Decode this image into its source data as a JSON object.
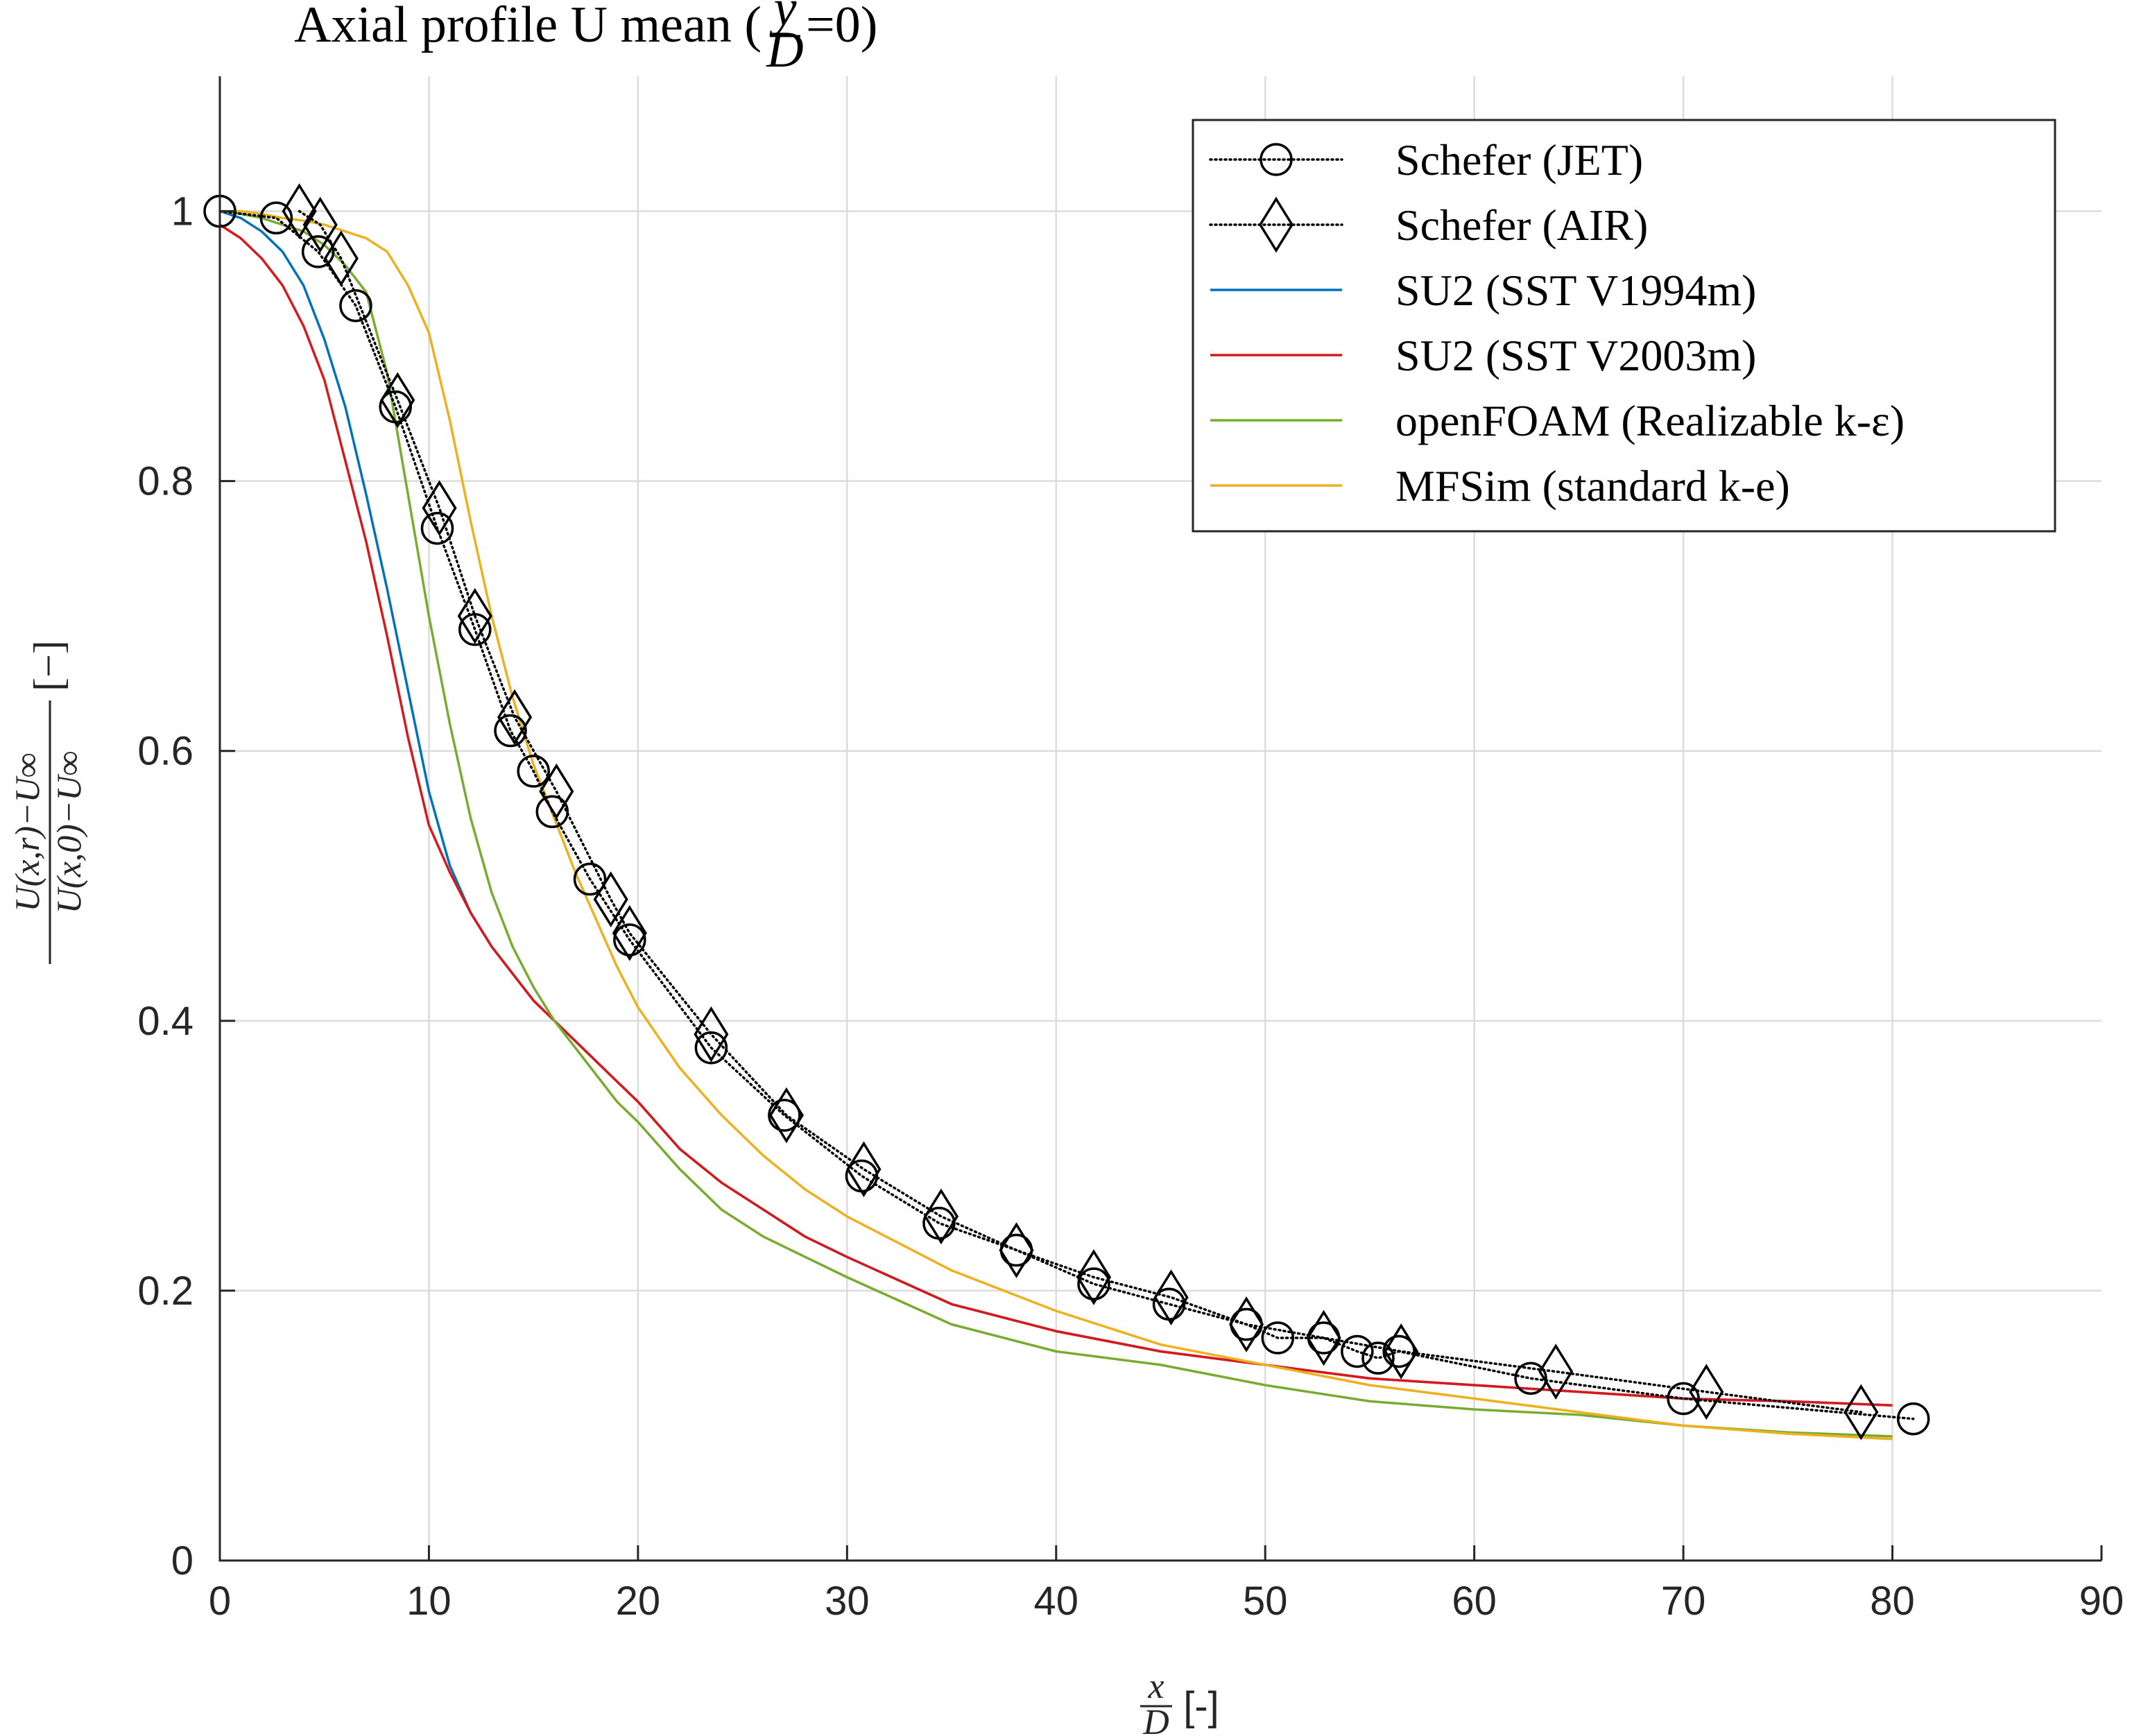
{
  "chart_data": {
    "type": "line",
    "title": "Axial profile U mean (y/D=0)",
    "title_parts": {
      "prefix": "Axial profile U mean (",
      "frac_num": "y",
      "frac_den": "D",
      "suffix": "=0)"
    },
    "xlabel": "x/D [-]",
    "xlabel_parts": {
      "frac_num": "x",
      "frac_den": "D",
      "unit": "[-]"
    },
    "ylabel": "(U(x,r)−U∞)/(U(x,0)−U∞) [−]",
    "ylabel_parts": {
      "num": "U(x,r)−U∞",
      "den": "U(x,0)−U∞",
      "unit": "[−]"
    },
    "xlim": [
      0,
      90
    ],
    "ylim": [
      0,
      1.1
    ],
    "xticks": [
      0,
      10,
      20,
      30,
      40,
      50,
      60,
      70,
      80,
      90
    ],
    "yticks": [
      0,
      0.2,
      0.4,
      0.6,
      0.8,
      1
    ],
    "xtick_labels": [
      "0",
      "10",
      "20",
      "30",
      "40",
      "50",
      "60",
      "70",
      "80",
      "90"
    ],
    "ytick_labels": [
      "0",
      "0.2",
      "0.4",
      "0.6",
      "0.8",
      "1"
    ],
    "grid": true,
    "legend_position": "top-right",
    "series": [
      {
        "name": "Schefer (JET)",
        "color": "#000000",
        "line": "dotted",
        "marker": "circle",
        "x": [
          0,
          2.7,
          4.7,
          6.5,
          8.4,
          10.4,
          12.2,
          13.9,
          15.0,
          15.9,
          17.7,
          19.6,
          23.5,
          27.0,
          30.7,
          34.4,
          38.1,
          41.8,
          45.4,
          49.1,
          50.6,
          52.8,
          54.4,
          55.4,
          56.4,
          62.7,
          70.0,
          81.0
        ],
        "y": [
          1.0,
          0.995,
          0.97,
          0.93,
          0.855,
          0.765,
          0.69,
          0.615,
          0.585,
          0.555,
          0.505,
          0.46,
          0.38,
          0.33,
          0.285,
          0.25,
          0.23,
          0.205,
          0.19,
          0.175,
          0.165,
          0.165,
          0.155,
          0.15,
          0.155,
          0.135,
          0.12,
          0.105
        ]
      },
      {
        "name": "Schefer (AIR)",
        "color": "#000000",
        "line": "dotted",
        "marker": "diamond",
        "x": [
          3.8,
          4.8,
          5.8,
          8.5,
          10.5,
          12.2,
          14.1,
          16.1,
          18.7,
          19.6,
          23.5,
          27.1,
          30.8,
          34.5,
          38.1,
          41.8,
          45.5,
          49.1,
          52.8,
          56.5,
          63.9,
          71.1,
          78.5
        ],
        "y": [
          1.0,
          0.99,
          0.965,
          0.86,
          0.78,
          0.7,
          0.625,
          0.57,
          0.49,
          0.465,
          0.39,
          0.33,
          0.29,
          0.255,
          0.23,
          0.21,
          0.195,
          0.175,
          0.165,
          0.155,
          0.14,
          0.125,
          0.11
        ]
      },
      {
        "name": "SU2 (SST V1994m)",
        "color": "#0072BD",
        "line": "solid",
        "marker": "none",
        "x": [
          0,
          1,
          2,
          3,
          4,
          5,
          6,
          7,
          8,
          9,
          10,
          11,
          12,
          13,
          14,
          15,
          16,
          17,
          18,
          19,
          20,
          22,
          24,
          26,
          28,
          30,
          35,
          40,
          45,
          50,
          55,
          60,
          65,
          70,
          75,
          80
        ],
        "y": [
          1.0,
          0.995,
          0.985,
          0.97,
          0.945,
          0.905,
          0.855,
          0.79,
          0.72,
          0.645,
          0.57,
          0.515,
          0.48,
          0.455,
          0.435,
          0.415,
          0.4,
          0.385,
          0.37,
          0.355,
          0.34,
          0.305,
          0.28,
          0.26,
          0.24,
          0.225,
          0.19,
          0.17,
          0.155,
          0.145,
          0.135,
          0.13,
          0.125,
          0.12,
          0.118,
          0.115
        ]
      },
      {
        "name": "SU2 (SST V2003m)",
        "color": "#D7191C",
        "line": "solid",
        "marker": "none",
        "x": [
          0,
          1,
          2,
          3,
          4,
          5,
          6,
          7,
          8,
          9,
          10,
          11,
          12,
          13,
          14,
          15,
          16,
          17,
          18,
          19,
          20,
          22,
          24,
          26,
          28,
          30,
          35,
          40,
          45,
          50,
          55,
          60,
          65,
          70,
          75,
          80
        ],
        "y": [
          0.99,
          0.98,
          0.965,
          0.945,
          0.915,
          0.875,
          0.815,
          0.755,
          0.685,
          0.61,
          0.545,
          0.51,
          0.48,
          0.455,
          0.435,
          0.415,
          0.4,
          0.385,
          0.37,
          0.355,
          0.34,
          0.305,
          0.28,
          0.26,
          0.24,
          0.225,
          0.19,
          0.17,
          0.155,
          0.145,
          0.135,
          0.13,
          0.125,
          0.12,
          0.118,
          0.115
        ]
      },
      {
        "name": "openFOAM (Realizable k-ε)",
        "color": "#77AC30",
        "line": "solid",
        "marker": "none",
        "x": [
          0,
          1,
          2,
          3,
          4,
          5,
          6,
          7,
          8,
          9,
          10,
          11,
          12,
          13,
          14,
          15,
          16,
          17,
          18,
          19,
          20,
          22,
          24,
          26,
          28,
          30,
          35,
          40,
          45,
          50,
          55,
          60,
          65,
          70,
          75,
          80
        ],
        "y": [
          1.0,
          0.998,
          0.995,
          0.99,
          0.985,
          0.975,
          0.96,
          0.94,
          0.88,
          0.79,
          0.7,
          0.62,
          0.55,
          0.495,
          0.455,
          0.425,
          0.4,
          0.38,
          0.36,
          0.34,
          0.325,
          0.29,
          0.26,
          0.24,
          0.225,
          0.21,
          0.175,
          0.155,
          0.145,
          0.13,
          0.118,
          0.112,
          0.108,
          0.1,
          0.095,
          0.092
        ]
      },
      {
        "name": "MFSim (standard k-e)",
        "color": "#EDB120",
        "line": "solid",
        "marker": "none",
        "x": [
          0,
          1,
          2,
          3,
          4,
          5,
          6,
          7,
          8,
          9,
          10,
          11,
          12,
          13,
          14,
          15,
          16,
          17,
          18,
          19,
          20,
          22,
          24,
          26,
          28,
          30,
          35,
          40,
          45,
          50,
          55,
          60,
          65,
          70,
          75,
          80
        ],
        "y": [
          1.0,
          1.0,
          0.998,
          0.995,
          0.993,
          0.99,
          0.985,
          0.98,
          0.97,
          0.945,
          0.91,
          0.845,
          0.77,
          0.7,
          0.64,
          0.59,
          0.55,
          0.51,
          0.475,
          0.44,
          0.41,
          0.365,
          0.33,
          0.3,
          0.275,
          0.255,
          0.215,
          0.185,
          0.16,
          0.145,
          0.13,
          0.12,
          0.11,
          0.1,
          0.094,
          0.09
        ]
      }
    ]
  }
}
